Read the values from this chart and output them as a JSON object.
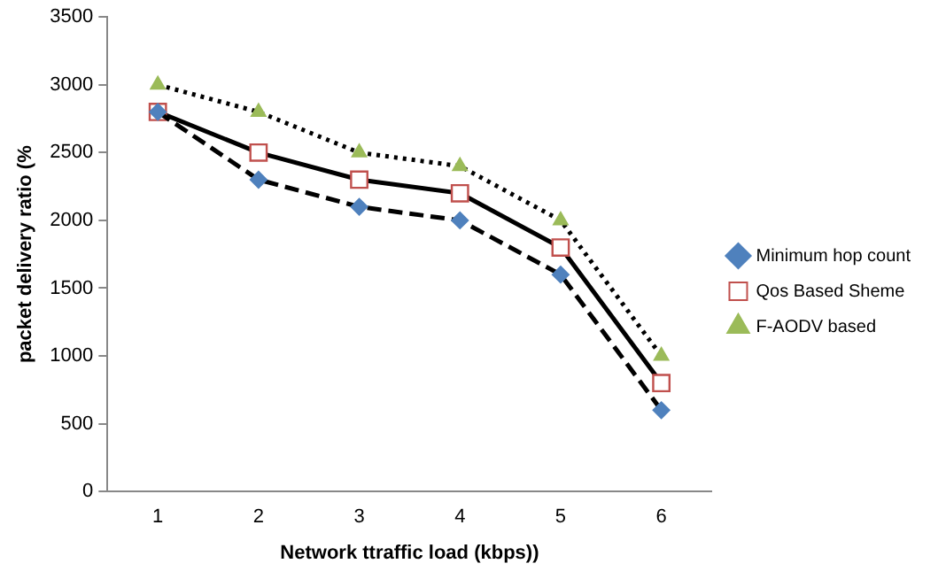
{
  "chart_data": {
    "type": "line",
    "xlabel": "Network ttraffic load (kbps))",
    "ylabel": "packet delivery ratio (%",
    "categories": [
      "1",
      "2",
      "3",
      "4",
      "5",
      "6"
    ],
    "series": [
      {
        "name": "Minimum hop count",
        "color": "#4f81bd",
        "values": [
          2800,
          2300,
          2100,
          2000,
          1600,
          600
        ],
        "marker": "diamond",
        "line_style": "dashed"
      },
      {
        "name": "Qos Based Sheme",
        "color": "#c0504d",
        "values": [
          2800,
          2500,
          2300,
          2200,
          1800,
          800
        ],
        "marker": "square",
        "line_style": "solid"
      },
      {
        "name": "F-AODV based",
        "color": "#9bbb59",
        "values": [
          3000,
          2800,
          2500,
          2400,
          2000,
          1000
        ],
        "marker": "triangle",
        "line_style": "dotted"
      }
    ],
    "ylim": [
      0,
      3500
    ],
    "yticks": [
      0,
      500,
      1000,
      1500,
      2000,
      2500,
      3000,
      3500
    ],
    "grid": false,
    "legend": "right"
  }
}
